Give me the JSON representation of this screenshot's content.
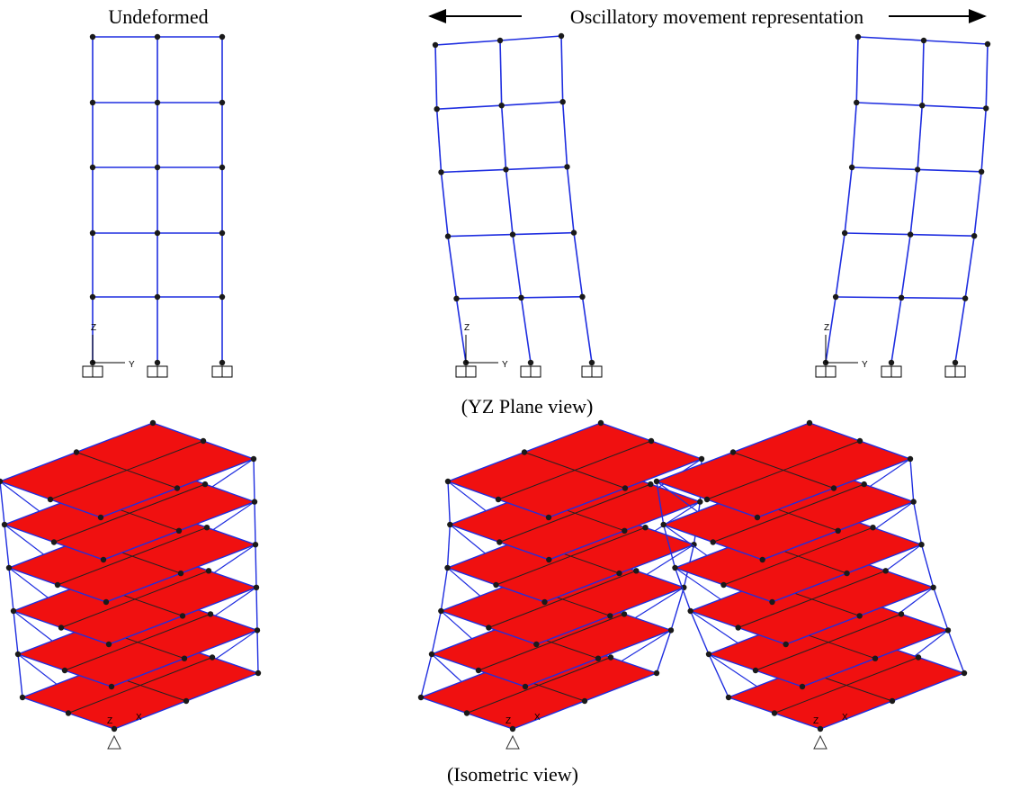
{
  "header": {
    "left_title": "Undeformed",
    "right_title": "Oscillatory movement representation"
  },
  "yz_frames": [
    {
      "axis_z": "Z",
      "axis_y": "Y"
    },
    {
      "axis_z": "Z",
      "axis_y": "Y"
    },
    {
      "axis_z": "Z",
      "axis_y": "Y"
    }
  ],
  "yz_caption": "(YZ Plane view)",
  "iso_frames": [
    {
      "axis_z": "Z",
      "axis_x": "X"
    },
    {
      "axis_z": "Z",
      "axis_x": "X"
    },
    {
      "axis_z": "Z",
      "axis_x": "X"
    }
  ],
  "iso_caption": "(Isometric view)"
}
